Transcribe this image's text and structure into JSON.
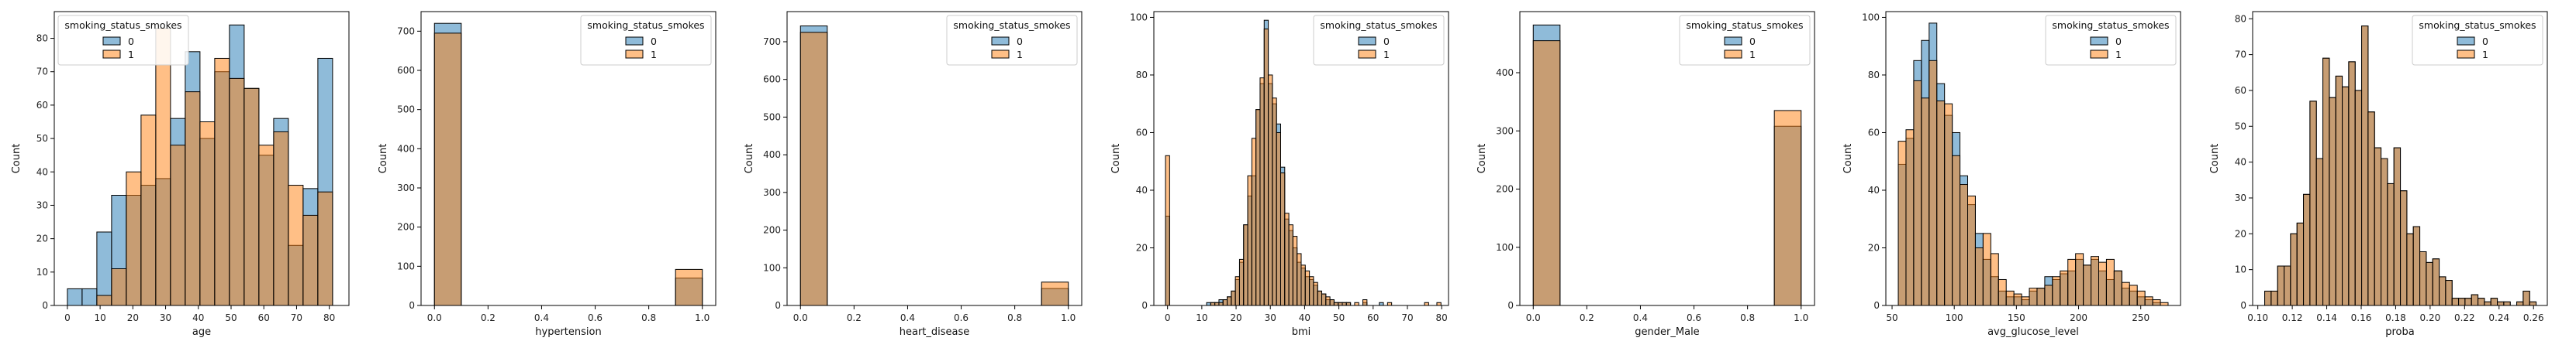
{
  "colors": {
    "series_0": "#1f77b4",
    "series_1": "#ff7f0e",
    "overlap": "#7f8c8d",
    "frame": "#000000"
  },
  "chart_data": [
    {
      "type": "histogram",
      "xlabel": "age",
      "ylabel": "Count",
      "legend": {
        "title": "smoking_status_smokes",
        "entries": [
          "0",
          "1"
        ],
        "placement": "top-left"
      },
      "xlim": [
        -4,
        86
      ],
      "ylim": [
        0,
        88
      ],
      "xticks": [
        0,
        10,
        20,
        30,
        40,
        50,
        60,
        70,
        80
      ],
      "yticks": [
        0,
        10,
        20,
        30,
        40,
        50,
        60,
        70,
        80
      ],
      "bin_edges": [
        0,
        4.5,
        9,
        13.5,
        18,
        22.5,
        27,
        31.5,
        36,
        40.5,
        45,
        49.5,
        54,
        58.5,
        63,
        67.5,
        72,
        76.5,
        81
      ],
      "series": [
        {
          "name": "0",
          "values": [
            5,
            5,
            22,
            33,
            33,
            36,
            38,
            56,
            76,
            50,
            70,
            84,
            65,
            45,
            56,
            18,
            35,
            74
          ]
        },
        {
          "name": "1",
          "values": [
            0,
            0,
            3,
            11,
            40,
            57,
            83,
            48,
            64,
            55,
            74,
            68,
            65,
            48,
            52,
            36,
            27,
            34
          ]
        }
      ]
    },
    {
      "type": "histogram",
      "xlabel": "hypertension",
      "ylabel": "Count",
      "legend": {
        "title": "smoking_status_smokes",
        "entries": [
          "0",
          "1"
        ],
        "placement": "top-right"
      },
      "xlim": [
        -0.05,
        1.05
      ],
      "ylim": [
        0,
        750
      ],
      "xticks": [
        0.0,
        0.2,
        0.4,
        0.6,
        0.8,
        1.0
      ],
      "yticks": [
        0,
        100,
        200,
        300,
        400,
        500,
        600,
        700
      ],
      "bin_edges": [
        0,
        0.1,
        0.2,
        0.3,
        0.4,
        0.5,
        0.6,
        0.7,
        0.8,
        0.9,
        1.0
      ],
      "series": [
        {
          "name": "0",
          "values": [
            720,
            0,
            0,
            0,
            0,
            0,
            0,
            0,
            0,
            70
          ]
        },
        {
          "name": "1",
          "values": [
            695,
            0,
            0,
            0,
            0,
            0,
            0,
            0,
            0,
            92
          ]
        }
      ]
    },
    {
      "type": "histogram",
      "xlabel": "heart_disease",
      "ylabel": "Count",
      "legend": {
        "title": "smoking_status_smokes",
        "entries": [
          "0",
          "1"
        ],
        "placement": "top-right"
      },
      "xlim": [
        -0.05,
        1.05
      ],
      "ylim": [
        0,
        780
      ],
      "xticks": [
        0.0,
        0.2,
        0.4,
        0.6,
        0.8,
        1.0
      ],
      "yticks": [
        0,
        100,
        200,
        300,
        400,
        500,
        600,
        700
      ],
      "bin_edges": [
        0,
        0.1,
        0.2,
        0.3,
        0.4,
        0.5,
        0.6,
        0.7,
        0.8,
        0.9,
        1.0
      ],
      "series": [
        {
          "name": "0",
          "values": [
            742,
            0,
            0,
            0,
            0,
            0,
            0,
            0,
            0,
            45
          ]
        },
        {
          "name": "1",
          "values": [
            725,
            0,
            0,
            0,
            0,
            0,
            0,
            0,
            0,
            62
          ]
        }
      ]
    },
    {
      "type": "histogram",
      "xlabel": "bmi",
      "ylabel": "Count",
      "legend": {
        "title": "smoking_status_smokes",
        "entries": [
          "0",
          "1"
        ],
        "placement": "top-right"
      },
      "xlim": [
        -4,
        82
      ],
      "ylim": [
        0,
        102
      ],
      "xticks": [
        0,
        10,
        20,
        30,
        40,
        50,
        60,
        70,
        80
      ],
      "yticks": [
        0,
        20,
        40,
        60,
        80,
        100
      ],
      "bin_edges": [
        -0.6,
        0.6,
        1.8,
        3.0,
        4.2,
        5.4,
        6.6,
        7.8,
        9.0,
        10.2,
        11.4,
        12.6,
        13.8,
        15.0,
        16.2,
        17.4,
        18.6,
        19.8,
        21.0,
        22.2,
        23.4,
        24.6,
        25.8,
        27.0,
        28.2,
        29.4,
        30.6,
        31.8,
        33.0,
        34.2,
        35.4,
        36.6,
        37.8,
        39.0,
        40.2,
        41.4,
        42.6,
        43.8,
        45.0,
        46.2,
        47.4,
        48.6,
        49.8,
        51.0,
        52.2,
        53.4,
        54.6,
        55.8,
        57.0,
        58.2,
        59.4,
        60.6,
        61.8,
        63.0,
        64.2,
        65.4,
        66.6,
        67.8,
        69.0,
        70.2,
        71.4,
        72.6,
        73.8,
        75.0,
        76.2,
        77.4,
        78.6,
        79.8
      ],
      "series": [
        {
          "name": "0",
          "values": [
            31,
            0,
            0,
            0,
            0,
            0,
            0,
            0,
            0,
            0,
            1,
            1,
            1,
            2,
            2,
            3,
            5,
            9,
            15,
            28,
            38,
            45,
            68,
            77,
            99,
            77,
            70,
            63,
            48,
            30,
            26,
            20,
            15,
            13,
            10,
            9,
            7,
            5,
            4,
            2,
            2,
            1,
            1,
            1,
            1,
            0,
            0,
            0,
            1,
            0,
            0,
            0,
            1,
            0,
            0,
            0,
            0,
            0,
            0,
            0,
            0,
            0,
            0,
            0,
            0,
            0,
            0
          ]
        },
        {
          "name": "1",
          "values": [
            52,
            0,
            0,
            0,
            0,
            0,
            0,
            0,
            0,
            0,
            0,
            1,
            1,
            1,
            2,
            3,
            5,
            10,
            16,
            28,
            45,
            58,
            68,
            79,
            96,
            80,
            72,
            60,
            46,
            32,
            28,
            24,
            18,
            14,
            12,
            10,
            8,
            5,
            4,
            3,
            2,
            1,
            1,
            1,
            1,
            0,
            1,
            0,
            2,
            0,
            0,
            0,
            0,
            0,
            1,
            0,
            0,
            0,
            0,
            0,
            0,
            0,
            0,
            1,
            0,
            0,
            1
          ]
        }
      ]
    },
    {
      "type": "histogram",
      "xlabel": "gender_Male",
      "ylabel": "Count",
      "legend": {
        "title": "smoking_status_smokes",
        "entries": [
          "0",
          "1"
        ],
        "placement": "top-right"
      },
      "xlim": [
        -0.05,
        1.05
      ],
      "ylim": [
        0,
        505
      ],
      "xticks": [
        0.0,
        0.2,
        0.4,
        0.6,
        0.8,
        1.0
      ],
      "yticks": [
        0,
        100,
        200,
        300,
        400
      ],
      "bin_edges": [
        0,
        0.1,
        0.2,
        0.3,
        0.4,
        0.5,
        0.6,
        0.7,
        0.8,
        0.9,
        1.0
      ],
      "series": [
        {
          "name": "0",
          "values": [
            482,
            0,
            0,
            0,
            0,
            0,
            0,
            0,
            0,
            308
          ]
        },
        {
          "name": "1",
          "values": [
            455,
            0,
            0,
            0,
            0,
            0,
            0,
            0,
            0,
            335
          ]
        }
      ]
    },
    {
      "type": "histogram",
      "xlabel": "avg_glucose_level",
      "ylabel": "Count",
      "legend": {
        "title": "smoking_status_smokes",
        "entries": [
          "0",
          "1"
        ],
        "placement": "top-right"
      },
      "xlim": [
        45,
        282
      ],
      "ylim": [
        0,
        102
      ],
      "xticks": [
        50,
        100,
        150,
        200,
        250
      ],
      "yticks": [
        0,
        20,
        40,
        60,
        80,
        100
      ],
      "bin_edges": [
        55,
        61.2,
        67.4,
        73.6,
        79.8,
        86,
        92.2,
        98.4,
        104.6,
        110.8,
        117,
        123.2,
        129.4,
        135.6,
        141.8,
        148,
        154.2,
        160.4,
        166.6,
        172.8,
        179,
        185.2,
        191.4,
        197.6,
        203.8,
        210,
        216.2,
        222.4,
        228.6,
        234.8,
        241,
        247.2,
        253.4,
        259.6,
        265.8,
        272
      ],
      "series": [
        {
          "name": "0",
          "values": [
            49,
            58,
            85,
            92,
            98,
            77,
            66,
            60,
            45,
            35,
            25,
            16,
            10,
            5,
            3,
            3,
            2,
            5,
            6,
            10,
            9,
            11,
            12,
            16,
            14,
            16,
            12,
            9,
            12,
            6,
            5,
            3,
            2,
            1,
            0
          ]
        },
        {
          "name": "1",
          "values": [
            57,
            61,
            78,
            72,
            85,
            71,
            70,
            52,
            42,
            38,
            20,
            25,
            18,
            9,
            5,
            4,
            3,
            6,
            6,
            7,
            10,
            12,
            16,
            18,
            14,
            17,
            15,
            16,
            12,
            8,
            7,
            5,
            3,
            2,
            1
          ]
        }
      ]
    },
    {
      "type": "histogram",
      "xlabel": "proba",
      "ylabel": "Count",
      "legend": {
        "title": "smoking_status_smokes",
        "entries": [
          "0",
          "1"
        ],
        "placement": "top-right"
      },
      "xlim": [
        0.097,
        0.268
      ],
      "ylim": [
        0,
        82
      ],
      "xticks": [
        0.1,
        0.12,
        0.14,
        0.16,
        0.18,
        0.2,
        0.22,
        0.24,
        0.26
      ],
      "yticks": [
        0,
        10,
        20,
        30,
        40,
        50,
        60,
        70,
        80
      ],
      "bin_edges": [
        0.104,
        0.10775,
        0.1115,
        0.11525,
        0.119,
        0.12275,
        0.1265,
        0.13025,
        0.134,
        0.13775,
        0.1415,
        0.14525,
        0.149,
        0.15275,
        0.1565,
        0.16025,
        0.164,
        0.16775,
        0.1715,
        0.17525,
        0.179,
        0.18275,
        0.1865,
        0.19025,
        0.194,
        0.19775,
        0.2015,
        0.20525,
        0.209,
        0.21275,
        0.2165,
        0.22025,
        0.224,
        0.22775,
        0.2315,
        0.23525,
        0.239,
        0.24275,
        0.2465,
        0.25025,
        0.254,
        0.25775,
        0.2615
      ],
      "series": [
        {
          "name": "0",
          "values": [
            4,
            4,
            11,
            11,
            20,
            23,
            31,
            57,
            41,
            69,
            58,
            64,
            61,
            68,
            60,
            78,
            54,
            44,
            41,
            34,
            44,
            32,
            20,
            22,
            15,
            12,
            13,
            8,
            7,
            2,
            2,
            2,
            3,
            2,
            1,
            2,
            1,
            1,
            0,
            1,
            4,
            1
          ]
        },
        {
          "name": "1",
          "values": [
            4,
            4,
            11,
            11,
            20,
            23,
            31,
            57,
            41,
            69,
            58,
            64,
            61,
            68,
            60,
            78,
            54,
            44,
            41,
            34,
            44,
            32,
            20,
            22,
            15,
            12,
            13,
            8,
            7,
            2,
            2,
            2,
            3,
            2,
            1,
            2,
            1,
            1,
            0,
            1,
            4,
            1
          ]
        }
      ]
    }
  ]
}
